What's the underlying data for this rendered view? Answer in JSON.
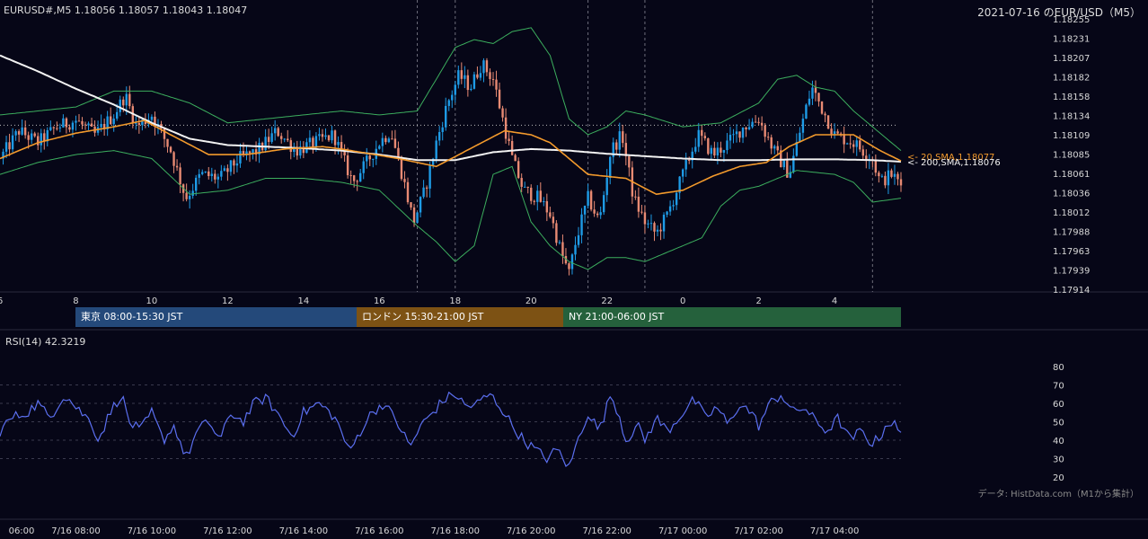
{
  "header": {
    "symbol_quote": "EURUSD#,M5 1.18056 1.18057 1.18043 1.18047",
    "date_title": "2021-07-16 のEUR/USD（M5）"
  },
  "sessions": [
    {
      "label": "東京 08:00-15:30 JST",
      "color": "#24497a"
    },
    {
      "label": "ロンドン 15:30-21:00 JST",
      "color": "#7d5214"
    },
    {
      "label": "NY 21:00-06:00 JST",
      "color": "#25613c"
    }
  ],
  "rsi_title": "RSI(14) 42.3219",
  "source_note": "データ: HistData.com（M1から集計）",
  "ma_labels": {
    "sma20": "<- 20,SMA,1.18077",
    "sma200": "<- 200,SMA,1.18076"
  },
  "colors": {
    "background": "#060617",
    "bull": "#1e9be6",
    "bear": "#e88a73",
    "sma20": "#f39a2c",
    "sma200": "#f2f2f2",
    "bollinger": "#3cae5e",
    "rsi": "#5b6ff0",
    "reference_line": "#bdbdbd"
  },
  "chart_data": [
    {
      "type": "candlestick",
      "title": "EURUSD#,M5 1.18056 1.18057 1.18043 1.18047",
      "y_ticks": [
        "1.18255",
        "1.18231",
        "1.18207",
        "1.18182",
        "1.18158",
        "1.18134",
        "1.18109",
        "1.18085",
        "1.18061",
        "1.18036",
        "1.18012",
        "1.17988",
        "1.17963",
        "1.17939",
        "1.17914"
      ],
      "x_tick_labels": [
        "6",
        "8",
        "10",
        "12",
        "14",
        "16",
        "18",
        "20",
        "22",
        "0",
        "2",
        "4"
      ],
      "x_tick_hours": [
        6,
        8,
        10,
        12,
        14,
        16,
        18,
        20,
        22,
        24,
        26,
        28
      ],
      "x_range_hours": [
        6.0,
        29.75
      ],
      "ylim": [
        1.17914,
        1.18255
      ],
      "reference_price": 1.18122,
      "vertical_marker_hours": [
        17.0,
        18.0,
        21.5,
        23.0,
        29.0
      ],
      "series": [
        {
          "name": "20,SMA",
          "last": 1.18077
        },
        {
          "name": "200,SMA",
          "last": 1.18076
        }
      ],
      "close_keypoints": [
        [
          6.0,
          1.1808
        ],
        [
          6.5,
          1.18115
        ],
        [
          7.0,
          1.181
        ],
        [
          7.5,
          1.1812
        ],
        [
          8.0,
          1.18128
        ],
        [
          8.5,
          1.1811
        ],
        [
          9.0,
          1.18135
        ],
        [
          9.3,
          1.1816
        ],
        [
          9.6,
          1.1812
        ],
        [
          10.0,
          1.18135
        ],
        [
          10.5,
          1.1809
        ],
        [
          10.9,
          1.1803
        ],
        [
          11.3,
          1.1806
        ],
        [
          11.8,
          1.18055
        ],
        [
          12.3,
          1.1808
        ],
        [
          12.8,
          1.1809
        ],
        [
          13.3,
          1.18115
        ],
        [
          13.8,
          1.1809
        ],
        [
          14.3,
          1.181
        ],
        [
          14.8,
          1.1811
        ],
        [
          15.0,
          1.18085
        ],
        [
          15.3,
          1.1805
        ],
        [
          15.6,
          1.1807
        ],
        [
          16.0,
          1.181
        ],
        [
          16.3,
          1.18115
        ],
        [
          16.6,
          1.1806
        ],
        [
          16.9,
          1.18
        ],
        [
          17.2,
          1.1804
        ],
        [
          17.5,
          1.181
        ],
        [
          17.8,
          1.1815
        ],
        [
          18.1,
          1.18185
        ],
        [
          18.4,
          1.1817
        ],
        [
          18.7,
          1.182
        ],
        [
          19.0,
          1.1818
        ],
        [
          19.2,
          1.1814
        ],
        [
          19.5,
          1.1808
        ],
        [
          19.8,
          1.1804
        ],
        [
          20.2,
          1.1803
        ],
        [
          20.5,
          1.1801
        ],
        [
          20.8,
          1.1796
        ],
        [
          21.0,
          1.17935
        ],
        [
          21.2,
          1.1798
        ],
        [
          21.5,
          1.1803
        ],
        [
          21.8,
          1.18
        ],
        [
          22.1,
          1.1809
        ],
        [
          22.4,
          1.1811
        ],
        [
          22.7,
          1.1803
        ],
        [
          23.0,
          1.18
        ],
        [
          23.3,
          1.17985
        ],
        [
          23.6,
          1.1801
        ],
        [
          24.0,
          1.1806
        ],
        [
          24.4,
          1.1811
        ],
        [
          24.8,
          1.18085
        ],
        [
          25.2,
          1.181
        ],
        [
          25.6,
          1.1812
        ],
        [
          26.0,
          1.1813
        ],
        [
          26.4,
          1.1809
        ],
        [
          26.8,
          1.1806
        ],
        [
          27.2,
          1.18135
        ],
        [
          27.4,
          1.1817
        ],
        [
          27.7,
          1.1814
        ],
        [
          28.0,
          1.1811
        ],
        [
          28.5,
          1.181
        ],
        [
          29.0,
          1.1808
        ],
        [
          29.2,
          1.1805
        ],
        [
          29.5,
          1.1806
        ],
        [
          29.75,
          1.18047
        ]
      ],
      "sma20_keypoints": [
        [
          6.0,
          1.1808
        ],
        [
          7.0,
          1.181
        ],
        [
          8.0,
          1.18112
        ],
        [
          9.0,
          1.1812
        ],
        [
          9.8,
          1.18128
        ],
        [
          10.5,
          1.1811
        ],
        [
          11.5,
          1.18085
        ],
        [
          12.5,
          1.18085
        ],
        [
          13.5,
          1.18092
        ],
        [
          14.5,
          1.18095
        ],
        [
          15.0,
          1.18092
        ],
        [
          15.5,
          1.18088
        ],
        [
          16.5,
          1.1808
        ],
        [
          17.5,
          1.1807
        ],
        [
          18.5,
          1.18095
        ],
        [
          19.3,
          1.18115
        ],
        [
          20.0,
          1.1811
        ],
        [
          20.5,
          1.181
        ],
        [
          21.5,
          1.1806
        ],
        [
          22.5,
          1.18055
        ],
        [
          23.3,
          1.18035
        ],
        [
          24.0,
          1.1804
        ],
        [
          24.8,
          1.18058
        ],
        [
          25.5,
          1.1807
        ],
        [
          26.2,
          1.18075
        ],
        [
          26.8,
          1.18095
        ],
        [
          27.5,
          1.1811
        ],
        [
          28.5,
          1.1811
        ],
        [
          29.2,
          1.1809
        ],
        [
          29.75,
          1.18077
        ]
      ],
      "sma200_keypoints": [
        [
          6.0,
          1.1821
        ],
        [
          7.0,
          1.1819
        ],
        [
          8.0,
          1.18168
        ],
        [
          9.0,
          1.18148
        ],
        [
          10.0,
          1.18125
        ],
        [
          11.0,
          1.18105
        ],
        [
          12.0,
          1.18097
        ],
        [
          13.0,
          1.18095
        ],
        [
          14.0,
          1.18093
        ],
        [
          15.0,
          1.1809
        ],
        [
          16.0,
          1.18085
        ],
        [
          17.0,
          1.18078
        ],
        [
          18.0,
          1.18078
        ],
        [
          19.0,
          1.18088
        ],
        [
          20.0,
          1.18092
        ],
        [
          21.0,
          1.1809
        ],
        [
          22.0,
          1.18086
        ],
        [
          23.0,
          1.18083
        ],
        [
          24.0,
          1.1808
        ],
        [
          25.0,
          1.18078
        ],
        [
          26.0,
          1.18078
        ],
        [
          27.0,
          1.18079
        ],
        [
          28.0,
          1.18079
        ],
        [
          29.0,
          1.18078
        ],
        [
          29.75,
          1.18076
        ]
      ],
      "bb_upper_keypoints": [
        [
          6.0,
          1.18135
        ],
        [
          7.0,
          1.1814
        ],
        [
          8.0,
          1.18145
        ],
        [
          9.0,
          1.18165
        ],
        [
          10.0,
          1.18165
        ],
        [
          11.0,
          1.1815
        ],
        [
          12.0,
          1.18125
        ],
        [
          13.0,
          1.1813
        ],
        [
          14.0,
          1.18135
        ],
        [
          15.0,
          1.1814
        ],
        [
          16.0,
          1.18135
        ],
        [
          17.0,
          1.1814
        ],
        [
          17.5,
          1.1818
        ],
        [
          18.0,
          1.1822
        ],
        [
          18.5,
          1.1823
        ],
        [
          19.0,
          1.18225
        ],
        [
          19.5,
          1.1824
        ],
        [
          20.0,
          1.18245
        ],
        [
          20.5,
          1.1821
        ],
        [
          21.0,
          1.1813
        ],
        [
          21.5,
          1.1811
        ],
        [
          22.0,
          1.1812
        ],
        [
          22.5,
          1.1814
        ],
        [
          23.0,
          1.18135
        ],
        [
          24.0,
          1.1812
        ],
        [
          25.0,
          1.18125
        ],
        [
          26.0,
          1.1815
        ],
        [
          26.5,
          1.1818
        ],
        [
          27.0,
          1.18185
        ],
        [
          27.5,
          1.1817
        ],
        [
          28.0,
          1.18165
        ],
        [
          28.5,
          1.1814
        ],
        [
          29.0,
          1.1812
        ],
        [
          29.75,
          1.1809
        ]
      ],
      "bb_lower_keypoints": [
        [
          6.0,
          1.1806
        ],
        [
          7.0,
          1.18075
        ],
        [
          8.0,
          1.18085
        ],
        [
          9.0,
          1.1809
        ],
        [
          10.0,
          1.1808
        ],
        [
          11.0,
          1.18035
        ],
        [
          12.0,
          1.1804
        ],
        [
          13.0,
          1.18055
        ],
        [
          14.0,
          1.18055
        ],
        [
          15.0,
          1.1805
        ],
        [
          16.0,
          1.1804
        ],
        [
          17.0,
          1.17995
        ],
        [
          17.5,
          1.17975
        ],
        [
          18.0,
          1.1795
        ],
        [
          18.5,
          1.1797
        ],
        [
          19.0,
          1.1806
        ],
        [
          19.5,
          1.1807
        ],
        [
          20.0,
          1.18
        ],
        [
          20.5,
          1.1797
        ],
        [
          21.0,
          1.1795
        ],
        [
          21.5,
          1.1794
        ],
        [
          22.0,
          1.17955
        ],
        [
          22.5,
          1.17955
        ],
        [
          23.0,
          1.1795
        ],
        [
          24.0,
          1.1797
        ],
        [
          24.5,
          1.1798
        ],
        [
          25.0,
          1.1802
        ],
        [
          25.5,
          1.1804
        ],
        [
          26.0,
          1.18045
        ],
        [
          26.5,
          1.18055
        ],
        [
          27.0,
          1.18065
        ],
        [
          28.0,
          1.1806
        ],
        [
          28.5,
          1.1805
        ],
        [
          29.0,
          1.18025
        ],
        [
          29.75,
          1.1803
        ]
      ]
    },
    {
      "type": "line",
      "title": "RSI(14) 42.3219",
      "y_ticks": [
        80,
        70,
        60,
        50,
        40,
        30,
        20
      ],
      "ylim": [
        20,
        80
      ],
      "x_tick_labels": [
        "06:00",
        "7/16 08:00",
        "7/16 10:00",
        "7/16 12:00",
        "7/16 14:00",
        "7/16 16:00",
        "7/16 18:00",
        "7/16 20:00",
        "7/16 22:00",
        "7/17 00:00",
        "7/17 02:00",
        "7/17 04:00"
      ],
      "x_tick_hours": [
        6,
        8,
        10,
        12,
        14,
        16,
        18,
        20,
        22,
        24,
        26,
        28
      ],
      "x_range_hours": [
        6.0,
        29.75
      ],
      "series": [
        {
          "name": "RSI(14)",
          "values": [
            [
              6.0,
              45
            ],
            [
              6.3,
              52
            ],
            [
              6.7,
              55
            ],
            [
              7.0,
              60
            ],
            [
              7.3,
              52
            ],
            [
              7.7,
              65
            ],
            [
              8.0,
              58
            ],
            [
              8.4,
              50
            ],
            [
              8.6,
              40
            ],
            [
              8.9,
              55
            ],
            [
              9.2,
              65
            ],
            [
              9.4,
              50
            ],
            [
              9.7,
              45
            ],
            [
              10.0,
              55
            ],
            [
              10.3,
              40
            ],
            [
              10.6,
              48
            ],
            [
              10.9,
              30
            ],
            [
              11.2,
              45
            ],
            [
              11.5,
              50
            ],
            [
              11.8,
              40
            ],
            [
              12.1,
              55
            ],
            [
              12.4,
              50
            ],
            [
              12.7,
              60
            ],
            [
              13.0,
              63
            ],
            [
              13.3,
              55
            ],
            [
              13.7,
              42
            ],
            [
              14.0,
              55
            ],
            [
              14.4,
              60
            ],
            [
              14.8,
              53
            ],
            [
              15.0,
              45
            ],
            [
              15.2,
              33
            ],
            [
              15.5,
              45
            ],
            [
              15.8,
              55
            ],
            [
              16.1,
              60
            ],
            [
              16.4,
              52
            ],
            [
              16.6,
              45
            ],
            [
              16.8,
              36
            ],
            [
              17.1,
              48
            ],
            [
              17.4,
              55
            ],
            [
              17.7,
              62
            ],
            [
              18.0,
              65
            ],
            [
              18.3,
              58
            ],
            [
              18.6,
              60
            ],
            [
              18.9,
              65
            ],
            [
              19.2,
              58
            ],
            [
              19.5,
              48
            ],
            [
              19.8,
              40
            ],
            [
              20.1,
              35
            ],
            [
              20.4,
              30
            ],
            [
              20.7,
              35
            ],
            [
              21.0,
              25
            ],
            [
              21.2,
              38
            ],
            [
              21.5,
              55
            ],
            [
              21.8,
              45
            ],
            [
              22.1,
              65
            ],
            [
              22.3,
              55
            ],
            [
              22.5,
              40
            ],
            [
              22.8,
              48
            ],
            [
              23.0,
              40
            ],
            [
              23.3,
              52
            ],
            [
              23.6,
              45
            ],
            [
              24.0,
              55
            ],
            [
              24.3,
              62
            ],
            [
              24.6,
              52
            ],
            [
              24.9,
              58
            ],
            [
              25.2,
              48
            ],
            [
              25.5,
              60
            ],
            [
              25.8,
              55
            ],
            [
              26.0,
              48
            ],
            [
              26.3,
              60
            ],
            [
              26.6,
              65
            ],
            [
              26.9,
              55
            ],
            [
              27.2,
              58
            ],
            [
              27.5,
              50
            ],
            [
              27.8,
              45
            ],
            [
              28.1,
              52
            ],
            [
              28.4,
              40
            ],
            [
              28.7,
              45
            ],
            [
              29.0,
              38
            ],
            [
              29.2,
              42
            ],
            [
              29.4,
              50
            ],
            [
              29.6,
              48
            ],
            [
              29.75,
              42.3219
            ]
          ]
        }
      ]
    }
  ]
}
